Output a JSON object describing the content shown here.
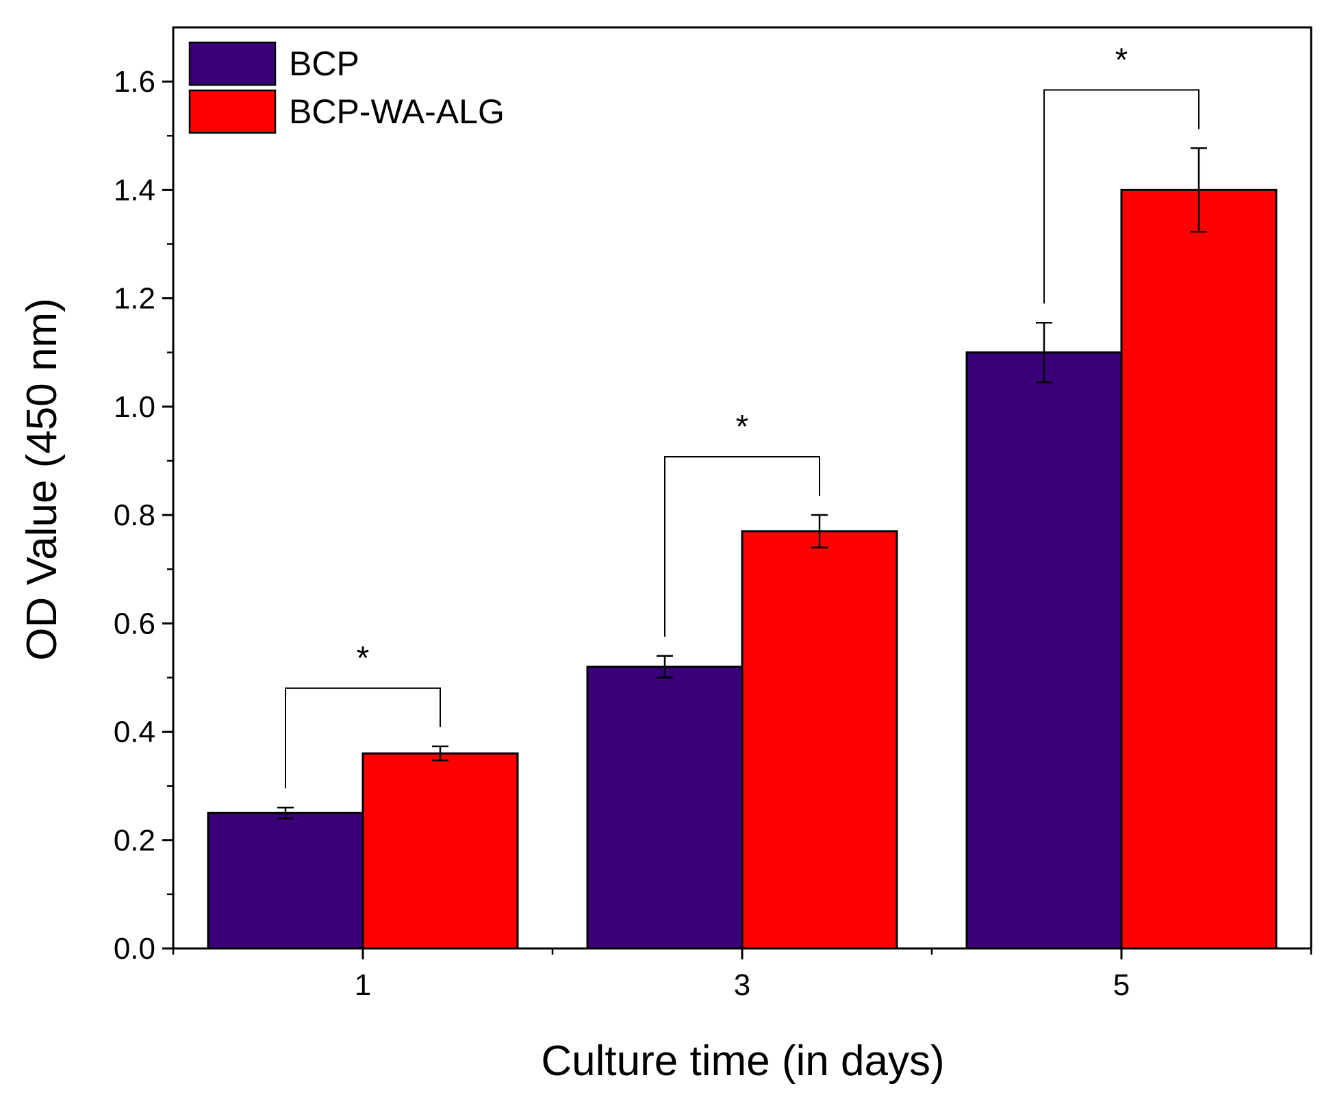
{
  "chart_data": {
    "type": "bar",
    "title": "",
    "xlabel": "Culture time (in days)",
    "ylabel": "OD Value (450 nm)",
    "categories": [
      "1",
      "3",
      "5"
    ],
    "ylim": [
      0,
      1.7
    ],
    "yticks": [
      "0.0",
      "0.2",
      "0.4",
      "0.6",
      "0.8",
      "1.0",
      "1.2",
      "1.4",
      "1.6"
    ],
    "grid": false,
    "legend_position": "top-left",
    "series": [
      {
        "name": "BCP",
        "color": "#3a007a",
        "values": [
          0.25,
          0.52,
          1.1
        ],
        "errors": [
          0.01,
          0.02,
          0.055
        ]
      },
      {
        "name": "BCP-WA-ALG",
        "color": "#ff0000",
        "values": [
          0.36,
          0.77,
          1.4
        ],
        "errors": [
          0.013,
          0.03,
          0.077
        ]
      }
    ],
    "significance": [
      {
        "category": "1",
        "label": "*"
      },
      {
        "category": "3",
        "label": "*"
      },
      {
        "category": "5",
        "label": "*"
      }
    ]
  }
}
